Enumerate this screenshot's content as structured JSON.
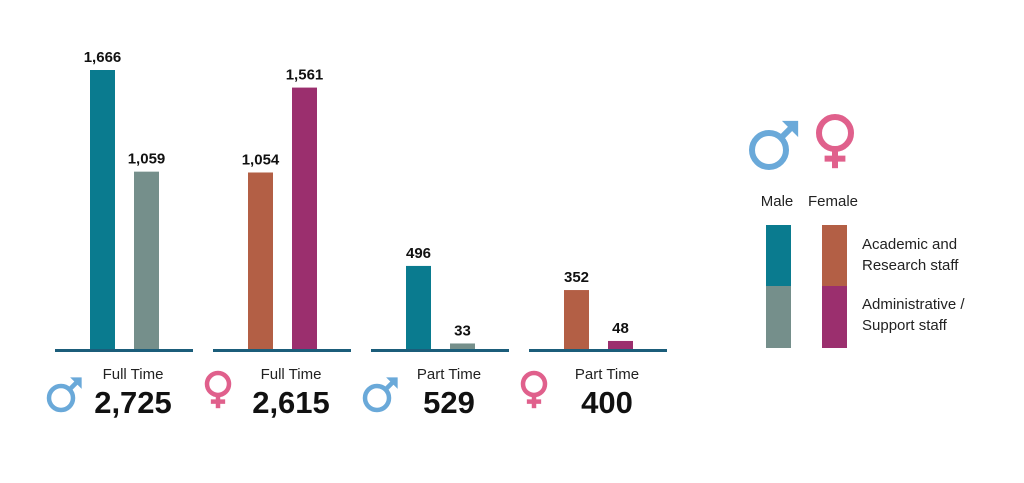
{
  "colors": {
    "male_academic": "#0a7b8f",
    "male_admin": "#758f8b",
    "female_academic": "#b35f45",
    "female_admin": "#9b2f6e",
    "baseline": "#1b5d7a",
    "male_symbol": "#6aa9d9",
    "female_symbol": "#e0608c",
    "text": "#111111"
  },
  "chart_data": {
    "type": "bar",
    "groups": [
      {
        "label": "Full Time",
        "total": "2,725",
        "gender_icon": "male-icon",
        "bars": [
          {
            "series": "Male - Academic and Research staff",
            "value": 1666,
            "label": "1,666",
            "color": "#0a7b8f"
          },
          {
            "series": "Male - Administrative / Support staff",
            "value": 1059,
            "label": "1,059",
            "color": "#758f8b"
          }
        ]
      },
      {
        "label": "Full Time",
        "total": "2,615",
        "gender_icon": "female-icon",
        "bars": [
          {
            "series": "Female - Academic and Research staff",
            "value": 1054,
            "label": "1,054",
            "color": "#b35f45"
          },
          {
            "series": "Female - Administrative / Support staff",
            "value": 1561,
            "label": "1,561",
            "color": "#9b2f6e"
          }
        ]
      },
      {
        "label": "Part Time",
        "total": "529",
        "gender_icon": "male-icon",
        "bars": [
          {
            "series": "Male - Academic and Research staff",
            "value": 496,
            "label": "496",
            "color": "#0a7b8f"
          },
          {
            "series": "Male - Administrative / Support staff",
            "value": 33,
            "label": "33",
            "color": "#758f8b"
          }
        ]
      },
      {
        "label": "Part Time",
        "total": "400",
        "gender_icon": "female-icon",
        "bars": [
          {
            "series": "Female - Academic and Research staff",
            "value": 352,
            "label": "352",
            "color": "#b35f45"
          },
          {
            "series": "Female - Administrative / Support staff",
            "value": 48,
            "label": "48",
            "color": "#9b2f6e"
          }
        ]
      }
    ],
    "ylim": [
      0,
      1666
    ],
    "grid": false,
    "legend": {
      "placement": "right",
      "gender_labels": [
        "Male",
        "Female"
      ],
      "staff_labels": [
        "Academic and Research staff",
        "Administrative / Support staff"
      ]
    }
  }
}
